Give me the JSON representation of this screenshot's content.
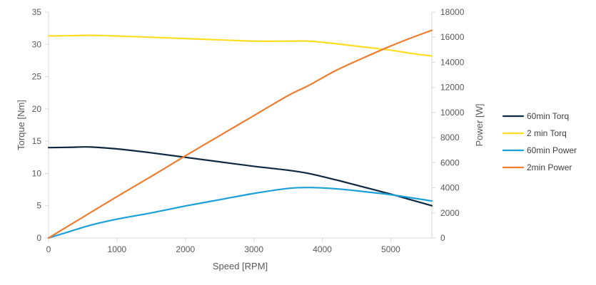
{
  "chart_data": {
    "type": "line",
    "title": "",
    "xlabel": "Speed [RPM]",
    "ylabel_left": "Torque [Nm]",
    "ylabel_right": "Power [W]",
    "xlim": [
      0,
      5600
    ],
    "ylim_left": [
      0,
      35
    ],
    "ylim_right": [
      0,
      18000
    ],
    "x_ticks": [
      "0",
      "1000",
      "2000",
      "3000",
      "4000",
      "5000"
    ],
    "y_left_ticks": [
      "0",
      "5",
      "10",
      "15",
      "20",
      "25",
      "30",
      "35"
    ],
    "y_right_ticks": [
      "0",
      "2000",
      "4000",
      "6000",
      "8000",
      "10000",
      "12000",
      "14000",
      "16000",
      "18000"
    ],
    "grid": false,
    "legend_position": "right",
    "series": [
      {
        "name": "60min Torq",
        "axis": "left",
        "color": "#0e2841",
        "x": [
          0,
          300,
          600,
          1000,
          1500,
          2000,
          2500,
          3000,
          3500,
          3800,
          4200,
          4600,
          5000,
          5300,
          5600
        ],
        "y": [
          14.0,
          14.05,
          14.1,
          13.8,
          13.2,
          12.5,
          11.8,
          11.1,
          10.5,
          10.0,
          9.0,
          7.9,
          6.8,
          5.9,
          5.0
        ]
      },
      {
        "name": "2 min Torq",
        "axis": "left",
        "color": "#ffdd22",
        "x": [
          0,
          300,
          600,
          1000,
          1500,
          2000,
          2500,
          3000,
          3500,
          3800,
          4200,
          4600,
          5000,
          5300,
          5600
        ],
        "y": [
          31.3,
          31.35,
          31.4,
          31.3,
          31.1,
          30.9,
          30.7,
          30.5,
          30.5,
          30.5,
          30.1,
          29.6,
          29.1,
          28.6,
          28.2
        ]
      },
      {
        "name": "60min Power",
        "axis": "right",
        "color": "#1a9fdb",
        "x": [
          0,
          300,
          600,
          1000,
          1500,
          2000,
          2500,
          3000,
          3500,
          3800,
          4200,
          4600,
          5000,
          5300,
          5600
        ],
        "y": [
          0,
          500,
          1000,
          1500,
          2000,
          2550,
          3050,
          3550,
          3950,
          4020,
          3920,
          3700,
          3450,
          3200,
          2950
        ]
      },
      {
        "name": "2min Power",
        "axis": "right",
        "color": "#ed7d31",
        "x": [
          0,
          500,
          1000,
          1500,
          2000,
          2500,
          3000,
          3500,
          3800,
          4200,
          4600,
          5000,
          5300,
          5600
        ],
        "y": [
          0,
          1650,
          3300,
          4900,
          6550,
          8150,
          9750,
          11350,
          12150,
          13350,
          14350,
          15300,
          15950,
          16550
        ]
      }
    ]
  }
}
